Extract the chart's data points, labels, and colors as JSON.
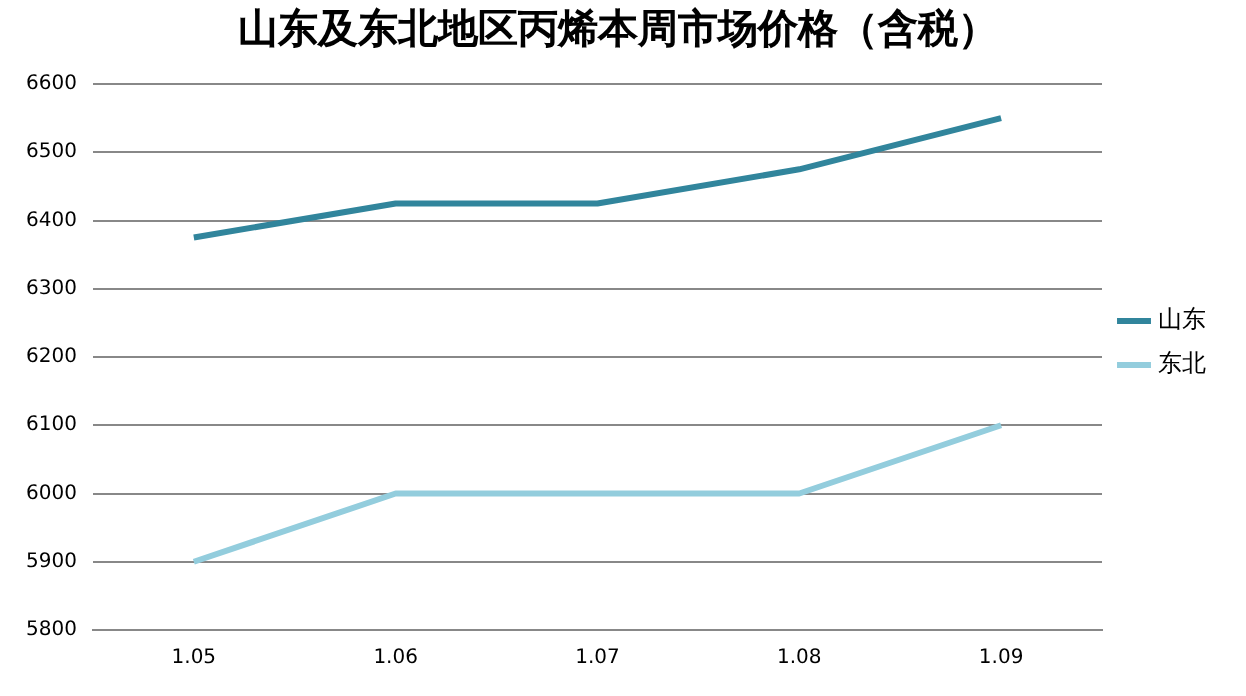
{
  "chart_data": {
    "type": "line",
    "title": "山东及东北地区丙烯本周市场价格（含税）",
    "categories": [
      "1.05",
      "1.06",
      "1.07",
      "1.08",
      "1.09"
    ],
    "series": [
      {
        "name": "山东",
        "color": "#31859c",
        "values": [
          6375,
          6425,
          6425,
          6475,
          6550
        ]
      },
      {
        "name": "东北",
        "color": "#93cddd",
        "values": [
          5900,
          6000,
          6000,
          6000,
          6100
        ]
      }
    ],
    "ylim": [
      5800,
      6600
    ],
    "yticks": [
      5800,
      5900,
      6000,
      6100,
      6200,
      6300,
      6400,
      6500,
      6600
    ],
    "grid": "y",
    "legend": "right",
    "marker": "none",
    "line_style": "solid"
  }
}
